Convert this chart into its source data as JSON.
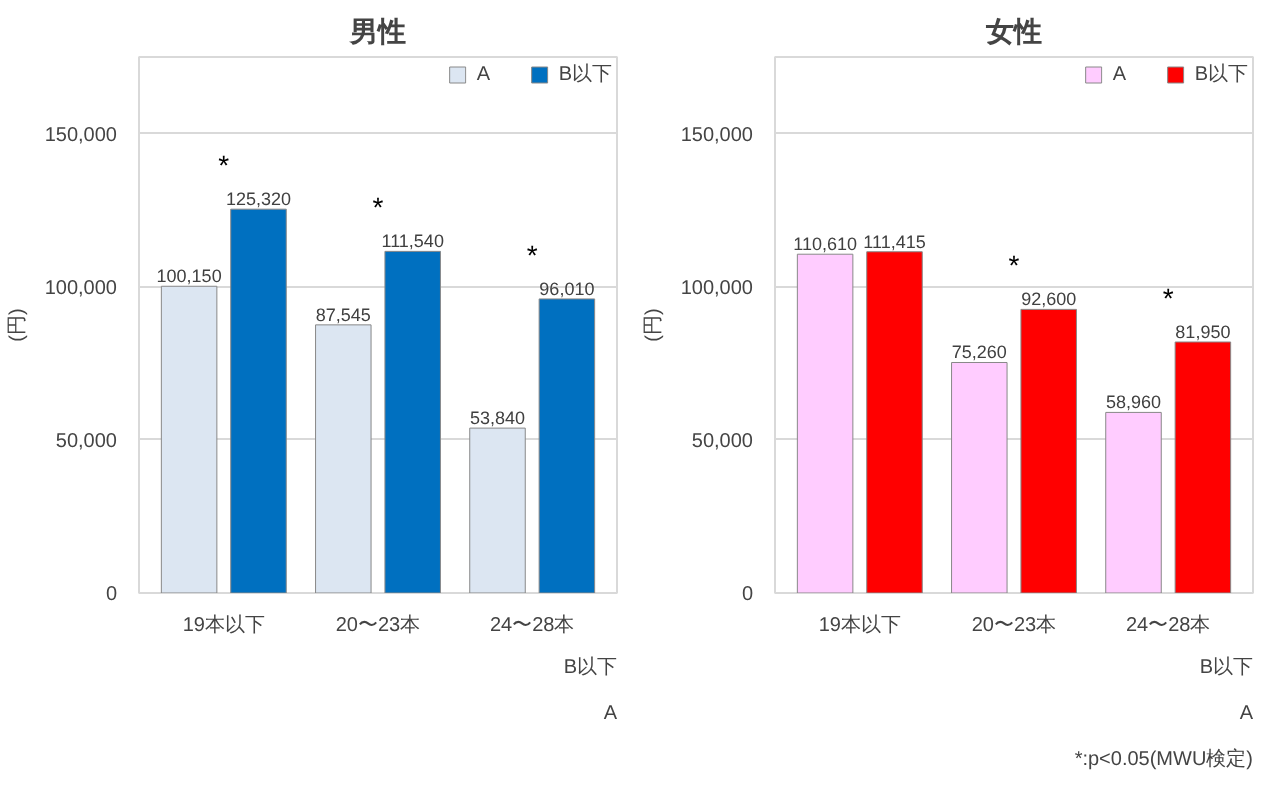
{
  "chart_data": [
    {
      "type": "bar",
      "title": "男性",
      "ylabel": "(円)",
      "categories": [
        "19本以下",
        "20〜23本",
        "24〜28本"
      ],
      "series": [
        {
          "name": "A",
          "color": "#dce6f2",
          "values": [
            100150,
            87545,
            53840
          ],
          "value_labels": [
            "100,150",
            "87,545",
            "53,840"
          ]
        },
        {
          "name": "B以下",
          "color": "#0070c0",
          "values": [
            125320,
            111540,
            96010
          ],
          "value_labels": [
            "125,320",
            "111,540",
            "96,010"
          ]
        }
      ],
      "ylim": [
        0,
        175000
      ],
      "yticks": [
        0,
        {
          "value": 50000,
          "label": "50,000"
        },
        {
          "value": 100000,
          "label": "100,000"
        },
        {
          "value": 150000,
          "label": "150,000"
        }
      ],
      "grid": "y",
      "legend": "top right",
      "annotations": [
        {
          "text": "*",
          "x": "19本以下",
          "y": 125320
        },
        {
          "text": "*",
          "x": "20〜23本",
          "y": 111540
        },
        {
          "text": "*",
          "x": "24〜28本",
          "y": 96010
        },
        "B以下",
        "A"
      ]
    },
    {
      "type": "bar",
      "title": "女性",
      "ylabel": "(円)",
      "categories": [
        "19本以下",
        "20〜23本",
        "24〜28本"
      ],
      "series": [
        {
          "name": "A",
          "color": "#ffccff",
          "values": [
            110610,
            75260,
            58960
          ],
          "value_labels": [
            "110,610",
            "75,260",
            "58,960"
          ]
        },
        {
          "name": "B以下",
          "color": "#ff0000",
          "values": [
            111415,
            92600,
            81950
          ],
          "value_labels": [
            "111,415",
            "92,600",
            "81,950"
          ]
        }
      ],
      "ylim": [
        0,
        175000
      ],
      "yticks": [
        0,
        {
          "value": 50000,
          "label": "50,000"
        },
        {
          "value": 100000,
          "label": "100,000"
        },
        {
          "value": 150000,
          "label": "150,000"
        }
      ],
      "grid": "y",
      "legend": "top right",
      "annotations": [
        {
          "text": "*",
          "x": "20〜23本",
          "y": 92600
        },
        {
          "text": "*",
          "x": "24〜28本",
          "y": 81950
        },
        "B以下",
        "A",
        "*:p<0.05(MWU検定)"
      ]
    }
  ]
}
